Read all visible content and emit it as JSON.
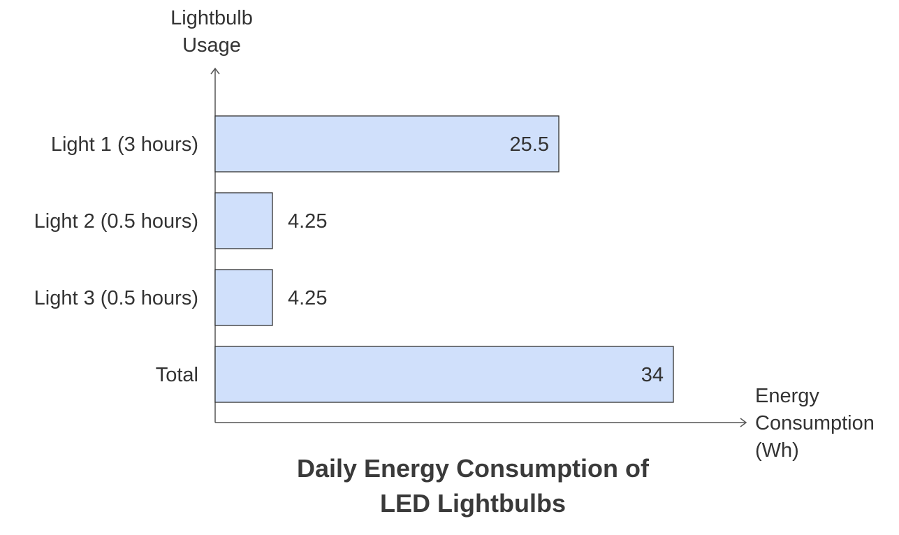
{
  "chart_data": {
    "type": "bar",
    "orientation": "horizontal",
    "title": "Daily Energy Consumption of LED Lightbulbs",
    "title_lines": [
      "Daily Energy Consumption of",
      "LED Lightbulbs"
    ],
    "categories": [
      "Light 1 (3 hours)",
      "Light 2 (0.5 hours)",
      "Light 3 (0.5 hours)",
      "Total"
    ],
    "values": [
      25.5,
      4.25,
      4.25,
      34
    ],
    "value_labels": [
      "25.5",
      "4.25",
      "4.25",
      "34"
    ],
    "ylabel": "Lightbulb Usage",
    "ylabel_lines": [
      "Lightbulb",
      "Usage"
    ],
    "xlabel": "Energy Consumption (Wh)",
    "xlabel_lines": [
      "Energy",
      "Consumption",
      "(Wh)"
    ],
    "xlim": [
      0,
      34
    ],
    "grid": false,
    "legend": "none",
    "bar_color": "#d0e0fb",
    "bar_edge_color": "#333333",
    "axis_color": "#555555"
  }
}
